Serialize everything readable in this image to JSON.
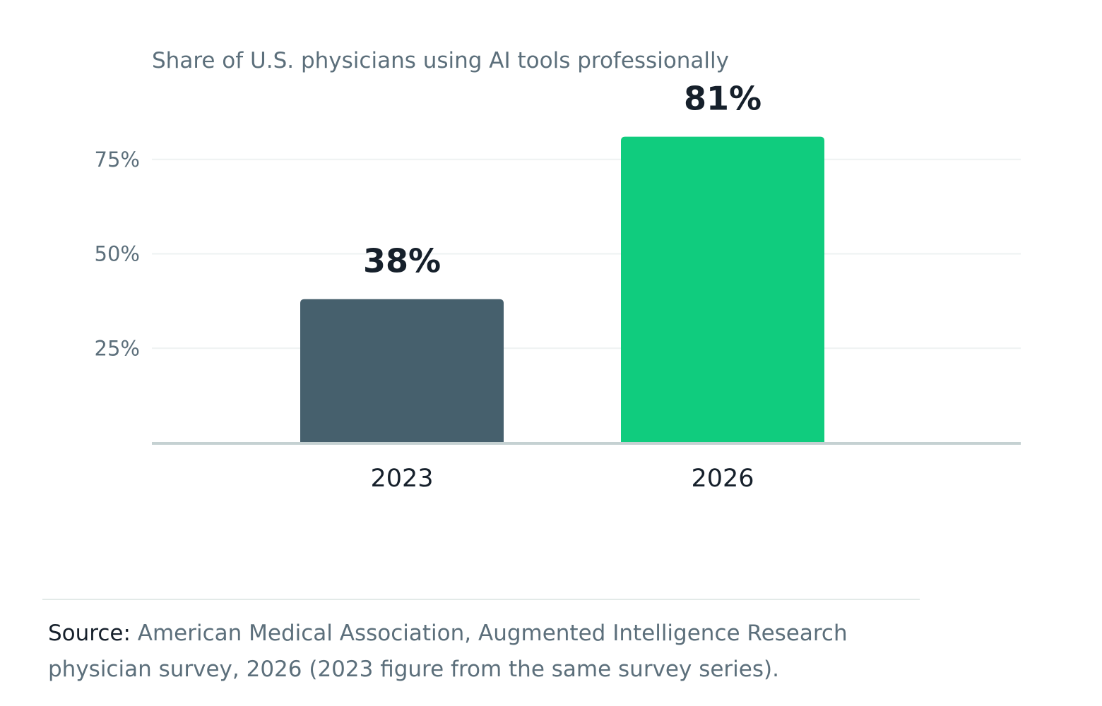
{
  "chart_data": {
    "type": "bar",
    "title": "Share of U.S. physicians using AI tools professionally",
    "categories": [
      "2023",
      "2026"
    ],
    "values": [
      38,
      81
    ],
    "value_labels": [
      "38%",
      "81%"
    ],
    "yticks": [
      25,
      50,
      75
    ],
    "ytick_labels": [
      "25%",
      "50%",
      "75%"
    ],
    "ylim": [
      0,
      81
    ],
    "ylabel": "",
    "xlabel": "",
    "grid": true,
    "colors": [
      "#46606d",
      "#10cc7e"
    ]
  },
  "footer": {
    "source_label": "Source:",
    "source_text": " American Medical Association, Augmented Intelligence Research physician survey, 2026 (2023 figure from the same survey series)."
  }
}
